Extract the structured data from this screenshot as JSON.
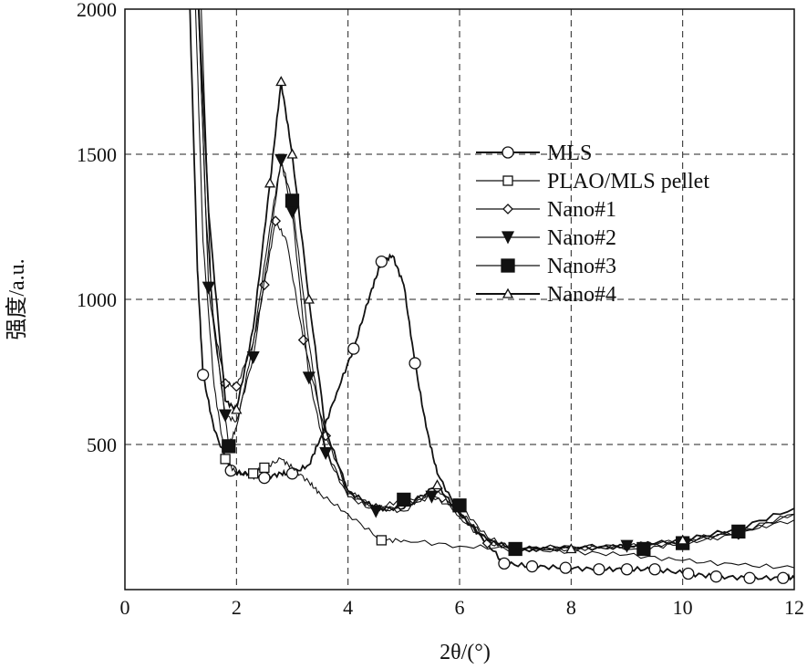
{
  "chart_data": {
    "type": "line",
    "title": "",
    "xlabel": "2θ/(°)",
    "ylabel": "强度/a.u.",
    "xlim": [
      0,
      12
    ],
    "ylim": [
      0,
      2000
    ],
    "xticks": [
      0,
      2,
      4,
      6,
      8,
      10,
      12
    ],
    "yticks": [
      500,
      1000,
      1500,
      2000
    ],
    "xtick_labels": [
      "0",
      "2",
      "4",
      "6",
      "8",
      "10",
      "12"
    ],
    "ytick_labels": [
      "500",
      "1000",
      "1500",
      "2000"
    ],
    "grid": true,
    "legend_position": "top-right",
    "series": [
      {
        "name": "MLS",
        "marker": "circle-open",
        "bold": true,
        "x": [
          1.15,
          1.3,
          1.4,
          1.6,
          1.9,
          2.2,
          2.5,
          2.8,
          3.0,
          3.3,
          3.5,
          3.8,
          4.1,
          4.4,
          4.6,
          4.8,
          5.0,
          5.2,
          5.4,
          5.6,
          6.0,
          6.4,
          6.8,
          7.3,
          7.9,
          8.5,
          9.0,
          9.5,
          10.1,
          10.6,
          11.2,
          11.8,
          12
        ],
        "y": [
          2100,
          1100,
          740,
          550,
          410,
          395,
          385,
          400,
          400,
          430,
          520,
          680,
          830,
          1020,
          1130,
          1150,
          1050,
          780,
          560,
          400,
          260,
          180,
          90,
          80,
          75,
          70,
          70,
          70,
          55,
          45,
          40,
          40,
          40
        ],
        "markers_at": [
          2,
          4,
          6,
          8,
          12,
          14,
          17,
          22,
          23,
          24,
          25,
          26,
          27,
          28,
          29,
          30,
          31
        ]
      },
      {
        "name": "PLAO/MLS pellet",
        "marker": "square-open",
        "bold": false,
        "x": [
          1.25,
          1.4,
          1.6,
          1.8,
          2.0,
          2.3,
          2.5,
          2.8,
          3.0,
          3.3,
          3.5,
          4.0,
          4.6,
          5.0,
          6.0,
          7.0,
          8.0,
          9.0,
          10.0,
          11.0,
          12.0
        ],
        "y": [
          2100,
          1200,
          700,
          450,
          400,
          400,
          420,
          450,
          420,
          370,
          330,
          260,
          170,
          170,
          150,
          140,
          130,
          120,
          100,
          85,
          75
        ],
        "markers_at": [
          3,
          5,
          6,
          12
        ]
      },
      {
        "name": "Nano#1",
        "marker": "diamond-open",
        "bold": false,
        "x": [
          1.3,
          1.45,
          1.6,
          1.8,
          2.0,
          2.3,
          2.5,
          2.7,
          2.9,
          3.2,
          3.6,
          4.0,
          4.5,
          5.0,
          5.6,
          6.0,
          6.5,
          7.0,
          8.0,
          9.0,
          10.0,
          11.0,
          12.0
        ],
        "y": [
          2100,
          1300,
          900,
          710,
          700,
          850,
          1050,
          1270,
          1200,
          860,
          530,
          340,
          280,
          270,
          350,
          250,
          160,
          140,
          140,
          150,
          160,
          190,
          260
        ],
        "markers_at": [
          3,
          4,
          6,
          7,
          9,
          10,
          12,
          14,
          16,
          19,
          21
        ]
      },
      {
        "name": "Nano#2",
        "marker": "triangle-down-filled",
        "bold": false,
        "x": [
          1.3,
          1.5,
          1.8,
          2.0,
          2.3,
          2.6,
          2.8,
          3.0,
          3.3,
          3.6,
          4.0,
          4.5,
          5.0,
          5.5,
          6.0,
          6.5,
          7.0,
          8.0,
          9.0,
          10.0,
          11.0,
          12.0
        ],
        "y": [
          2100,
          1040,
          600,
          580,
          800,
          1200,
          1480,
          1300,
          730,
          470,
          320,
          270,
          290,
          320,
          270,
          170,
          140,
          150,
          150,
          170,
          200,
          260
        ],
        "markers_at": [
          1,
          2,
          4,
          6,
          7,
          8,
          9,
          11,
          13,
          16,
          18,
          20
        ]
      },
      {
        "name": "Nano#3",
        "marker": "square-filled",
        "bold": false,
        "x": [
          1.35,
          1.55,
          1.86,
          2.0,
          2.3,
          2.6,
          2.8,
          3.0,
          3.3,
          3.6,
          4.0,
          4.5,
          5.0,
          5.5,
          6.0,
          6.5,
          7.0,
          8.0,
          9.3,
          10.0,
          11.0,
          12.0
        ],
        "y": [
          2100,
          1000,
          494,
          560,
          850,
          1250,
          1480,
          1340,
          850,
          480,
          330,
          280,
          310,
          320,
          290,
          180,
          140,
          150,
          140,
          160,
          200,
          240
        ],
        "markers_at": [
          2,
          7,
          12,
          14,
          16,
          18,
          19,
          20
        ]
      },
      {
        "name": "Nano#4",
        "marker": "triangle-up-open",
        "bold": true,
        "x": [
          1.3,
          1.5,
          1.8,
          2.0,
          2.3,
          2.6,
          2.8,
          3.0,
          3.3,
          3.6,
          4.0,
          4.5,
          5.0,
          5.6,
          6.0,
          6.5,
          7.0,
          8.0,
          9.0,
          10.0,
          11.0,
          12.0
        ],
        "y": [
          2100,
          1300,
          650,
          620,
          900,
          1400,
          1750,
          1500,
          1000,
          550,
          340,
          280,
          280,
          360,
          260,
          170,
          140,
          140,
          150,
          170,
          210,
          280
        ],
        "markers_at": [
          3,
          5,
          6,
          7,
          8,
          13,
          17,
          19
        ]
      }
    ]
  }
}
